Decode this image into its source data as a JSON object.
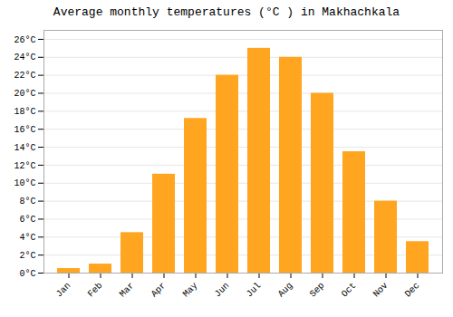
{
  "chart_data": {
    "type": "bar",
    "title": "Average monthly temperatures (°C ) in Makhachkala",
    "categories": [
      "Jan",
      "Feb",
      "Mar",
      "Apr",
      "May",
      "Jun",
      "Jul",
      "Aug",
      "Sep",
      "Oct",
      "Nov",
      "Dec"
    ],
    "values": [
      0.5,
      1.0,
      4.5,
      11.0,
      17.2,
      22.0,
      25.0,
      24.0,
      20.0,
      13.5,
      8.0,
      3.5
    ],
    "color": "#FFA520",
    "ylim": [
      0,
      27
    ],
    "yticks": [
      {
        "value": 0,
        "label": "0°C"
      },
      {
        "value": 2,
        "label": "2°C"
      },
      {
        "value": 4,
        "label": "4°C"
      },
      {
        "value": 6,
        "label": "6°C"
      },
      {
        "value": 8,
        "label": "8°C"
      },
      {
        "value": 10,
        "label": "10°C"
      },
      {
        "value": 12,
        "label": "12°C"
      },
      {
        "value": 14,
        "label": "14°C"
      },
      {
        "value": 16,
        "label": "16°C"
      },
      {
        "value": 18,
        "label": "18°C"
      },
      {
        "value": 20,
        "label": "20°C"
      },
      {
        "value": 22,
        "label": "22°C"
      },
      {
        "value": 24,
        "label": "24°C"
      },
      {
        "value": 26,
        "label": "26°C"
      }
    ],
    "grid": true
  }
}
